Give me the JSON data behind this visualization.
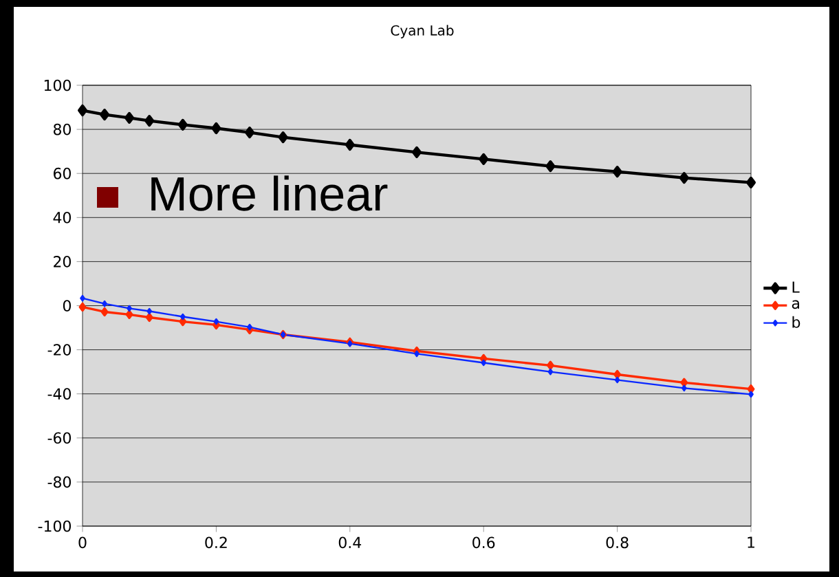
{
  "chart_data": {
    "type": "line",
    "title": "Cyan Lab",
    "x": [
      0,
      0.033,
      0.07,
      0.1,
      0.15,
      0.2,
      0.25,
      0.3,
      0.4,
      0.5,
      0.6,
      0.7,
      0.8,
      0.9,
      1
    ],
    "series": [
      {
        "name": "L",
        "color": "#000000",
        "values": [
          88.6,
          86.7,
          85.2,
          83.9,
          82.1,
          80.5,
          78.6,
          76.4,
          73,
          69.6,
          66.5,
          63.3,
          60.8,
          58,
          55.9
        ]
      },
      {
        "name": "a",
        "color": "#ff2a00",
        "values": [
          -0.6,
          -2.8,
          -4,
          -5.3,
          -7.2,
          -8.7,
          -10.9,
          -13.1,
          -16.5,
          -20.6,
          -24,
          -27.1,
          -31.2,
          -34.9,
          -37.8
        ]
      },
      {
        "name": "b",
        "color": "#0a28ff",
        "values": [
          3.4,
          0.9,
          -1.2,
          -2.5,
          -5,
          -7.2,
          -9.7,
          -13.1,
          -17.2,
          -21.8,
          -25.9,
          -30,
          -33.7,
          -37.4,
          -40.2
        ]
      }
    ],
    "xlim": [
      0,
      1
    ],
    "xticks": [
      0,
      0.2,
      0.4,
      0.6,
      0.8,
      1
    ],
    "ylim": [
      -100,
      100
    ],
    "yticks": [
      -100,
      -80,
      -60,
      -40,
      -20,
      0,
      20,
      40,
      60,
      80,
      100
    ],
    "grid": "y",
    "legend": "right",
    "marker": "diamond",
    "line_style": "solid",
    "annotations": [
      "More linear"
    ]
  }
}
